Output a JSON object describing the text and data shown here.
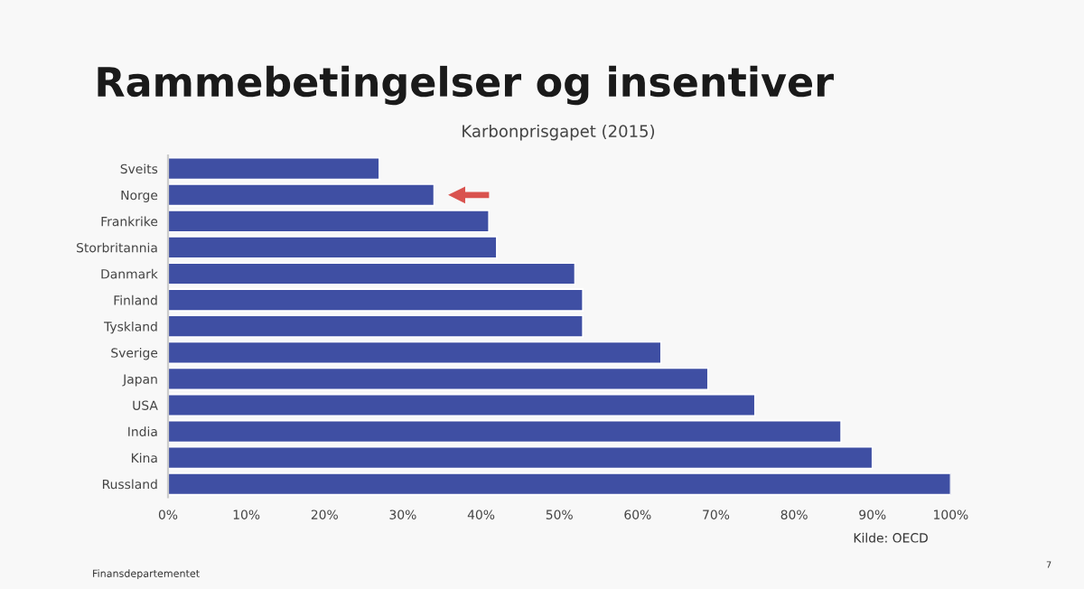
{
  "chart_data": {
    "type": "bar",
    "orientation": "horizontal",
    "title": "Rammebetingelser og insentiver",
    "subtitle": "Karbonprisgapet (2015)",
    "categories": [
      "Sveits",
      "Norge",
      "Frankrike",
      "Storbritannia",
      "Danmark",
      "Finland",
      "Tyskland",
      "Sverige",
      "Japan",
      "USA",
      "India",
      "Kina",
      "Russland"
    ],
    "values": [
      27,
      34,
      41,
      42,
      52,
      53,
      53,
      63,
      69,
      75,
      86,
      90,
      100
    ],
    "color": "#3f4fa3",
    "xlim": [
      0,
      100
    ],
    "xticks": [
      {
        "value": 0,
        "label": "0%"
      },
      {
        "value": 10,
        "label": "10%"
      },
      {
        "value": 20,
        "label": "20%"
      },
      {
        "value": 30,
        "label": "30%"
      },
      {
        "value": 40,
        "label": "40%"
      },
      {
        "value": 50,
        "label": "50%"
      },
      {
        "value": 60,
        "label": "60%"
      },
      {
        "value": 70,
        "label": "70%"
      },
      {
        "value": 80,
        "label": "80%"
      },
      {
        "value": 90,
        "label": "90%"
      },
      {
        "value": 100,
        "label": "100%"
      }
    ],
    "grid": false,
    "legend": false,
    "annotations": [
      "Kilde: OECD",
      "Finansdepartementet",
      "7"
    ]
  }
}
